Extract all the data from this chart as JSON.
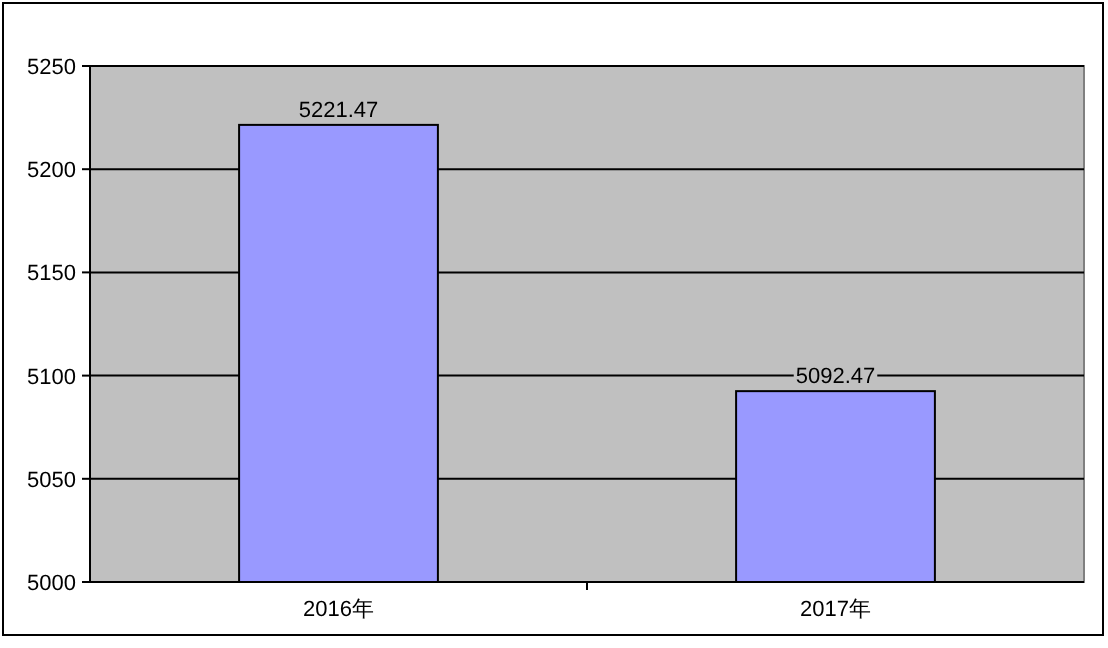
{
  "chart_data": {
    "type": "bar",
    "categories": [
      "2016年",
      "2017年"
    ],
    "values": [
      5221.47,
      5092.47
    ],
    "color": "#9999ff",
    "ylim": [
      5000,
      5250
    ],
    "yticks": [
      5000,
      5050,
      5100,
      5150,
      5200,
      5250
    ],
    "grid": "y",
    "data_labels": true
  }
}
